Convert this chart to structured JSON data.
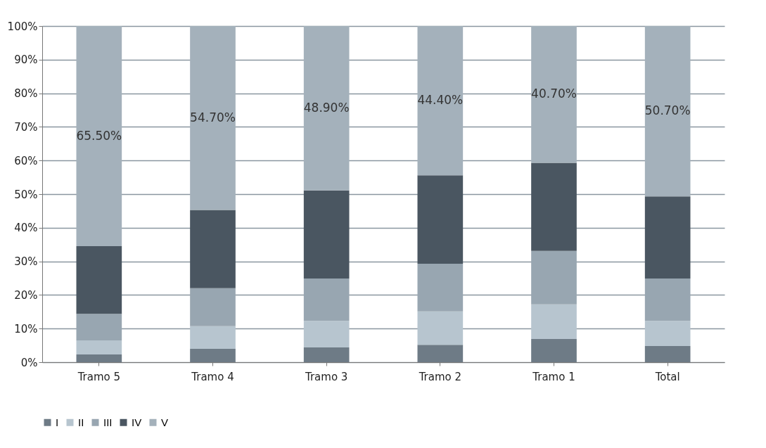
{
  "chart_data": {
    "type": "bar",
    "stacked": true,
    "categories": [
      "Tramo 5",
      "Tramo 4",
      "Tramo 3",
      "Tramo 2",
      "Tramo 1",
      "Total"
    ],
    "series": [
      {
        "name": "I",
        "color": "#6e7b86",
        "values": [
          2.3,
          4.0,
          4.4,
          5.2,
          6.9,
          4.8
        ]
      },
      {
        "name": "II",
        "color": "#b7c5cf",
        "values": [
          4.2,
          6.7,
          7.9,
          9.9,
          10.3,
          7.5
        ]
      },
      {
        "name": "III",
        "color": "#98a6b1",
        "values": [
          7.9,
          11.3,
          12.6,
          14.2,
          15.9,
          12.6
        ]
      },
      {
        "name": "IV",
        "color": "#4a5661",
        "values": [
          20.1,
          23.3,
          26.2,
          26.3,
          26.2,
          24.4
        ]
      },
      {
        "name": "V",
        "color": "#a4b1bb",
        "values": [
          65.5,
          54.7,
          48.9,
          44.4,
          40.7,
          50.7
        ],
        "value_labels": [
          "65.50%",
          "54.70%",
          "48.90%",
          "44.40%",
          "40.70%",
          "50.70%"
        ]
      }
    ],
    "ylim": [
      0,
      100
    ],
    "yticks": [
      {
        "value": 0,
        "label": "0%"
      },
      {
        "value": 10,
        "label": "10%"
      },
      {
        "value": 20,
        "label": "20%"
      },
      {
        "value": 30,
        "label": "30%"
      },
      {
        "value": 40,
        "label": "40%"
      },
      {
        "value": 50,
        "label": "50%"
      },
      {
        "value": 60,
        "label": "60%"
      },
      {
        "value": 70,
        "label": "70%"
      },
      {
        "value": 80,
        "label": "80%"
      },
      {
        "value": 90,
        "label": "90%"
      },
      {
        "value": 100,
        "label": "100%"
      }
    ],
    "grid": "y",
    "legend": "bottom"
  }
}
